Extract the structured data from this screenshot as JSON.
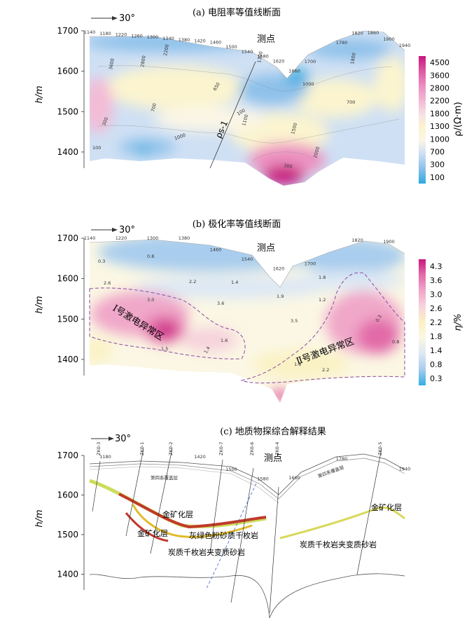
{
  "chart_data": [
    {
      "type": "heatmap",
      "panel": "a",
      "title": "(a) 电阻率等值线断面",
      "orientation": "30°",
      "ylabel": "h/m",
      "yticks": [
        "1700",
        "1600",
        "1500",
        "1400"
      ],
      "ylim": [
        1360,
        1700
      ],
      "station_label": "测点",
      "stations": [
        {
          "x": 1140,
          "label": "1140"
        },
        {
          "x": 1180,
          "label": "1180"
        },
        {
          "x": 1220,
          "label": "1220"
        },
        {
          "x": 1260,
          "label": "1260"
        },
        {
          "x": 1300,
          "label": "1300"
        },
        {
          "x": 1340,
          "label": "1340"
        },
        {
          "x": 1380,
          "label": "1380"
        },
        {
          "x": 1420,
          "label": "1420"
        },
        {
          "x": 1460,
          "label": "1460"
        },
        {
          "x": 1500,
          "label": "1500"
        },
        {
          "x": 1540,
          "label": "1540"
        },
        {
          "x": 1580,
          "label": "1580"
        },
        {
          "x": 1620,
          "label": "1620"
        },
        {
          "x": 1660,
          "label": "1660"
        },
        {
          "x": 1700,
          "label": "1700"
        },
        {
          "x": 1780,
          "label": "1780"
        },
        {
          "x": 1820,
          "label": "1820"
        },
        {
          "x": 1860,
          "label": "1860"
        },
        {
          "x": 1900,
          "label": "1900"
        },
        {
          "x": 1940,
          "label": "1940"
        }
      ],
      "fault_label": "ρs-1",
      "colorbar": {
        "label": "ρ/(Ω·m)",
        "levels": [
          "4500",
          "3600",
          "2800",
          "2200",
          "1800",
          "1300",
          "1000",
          "700",
          "300",
          "100"
        ],
        "colors": [
          "#c8177f",
          "#de5aa4",
          "#ec92c1",
          "#f3bcd6",
          "#f6e3e4",
          "#fbf4cf",
          "#fbf6e6",
          "#cfe0f4",
          "#8ec1ea",
          "#2aaae0"
        ]
      },
      "contour_labels": [
        "100",
        "300",
        "700",
        "1000",
        "1300",
        "1800",
        "2200",
        "2800",
        "3600",
        "650",
        "1100",
        "1500",
        "2000"
      ]
    },
    {
      "type": "heatmap",
      "panel": "b",
      "title": "(b) 极化率等值线断面",
      "orientation": "30°",
      "ylabel": "h/m",
      "yticks": [
        "1700",
        "1600",
        "1500",
        "1400"
      ],
      "ylim": [
        1360,
        1700
      ],
      "station_label": "测点",
      "stations": [
        {
          "x": 1140,
          "label": "1140"
        },
        {
          "x": 1220,
          "label": "1220"
        },
        {
          "x": 1300,
          "label": "1300"
        },
        {
          "x": 1380,
          "label": "1380"
        },
        {
          "x": 1460,
          "label": "1460"
        },
        {
          "x": 1540,
          "label": "1540"
        },
        {
          "x": 1620,
          "label": "1620"
        },
        {
          "x": 1700,
          "label": "1700"
        },
        {
          "x": 1820,
          "label": "1820"
        },
        {
          "x": 1900,
          "label": "1900"
        }
      ],
      "anomalies": [
        "Ⅰ号激电异常区",
        "Ⅱ号激电异常区"
      ],
      "colorbar": {
        "label": "η/%",
        "levels": [
          "4.3",
          "3.6",
          "3.0",
          "2.6",
          "2.2",
          "1.8",
          "1.4",
          "0.8",
          "0.3"
        ],
        "colors": [
          "#c8177f",
          "#e26aa8",
          "#f0a7c9",
          "#f6d3dd",
          "#faf2c4",
          "#fbf7e4",
          "#dde8f4",
          "#a9cdee",
          "#32b0e3"
        ]
      },
      "contour_labels": [
        "0.3",
        "0.8",
        "1.4",
        "1.8",
        "2.2",
        "2.6",
        "3.0",
        "3.6",
        "1.9",
        "1.2",
        "1.6",
        "1.5",
        "3.5"
      ]
    },
    {
      "type": "diagram",
      "panel": "c",
      "title": "(c) 地质物探综合解释结果",
      "orientation": "30°",
      "ylabel": "h/m",
      "yticks": [
        "1700",
        "1600",
        "1500",
        "1400"
      ],
      "ylim": [
        1360,
        1700
      ],
      "station_label": "测点",
      "stations": [
        {
          "x": 1180,
          "label": "1180"
        },
        {
          "x": 1420,
          "label": "1420"
        },
        {
          "x": 1500,
          "label": "1500"
        },
        {
          "x": 1580,
          "label": "1580"
        },
        {
          "x": 1660,
          "label": "1660"
        },
        {
          "x": 1780,
          "label": "1780"
        },
        {
          "x": 1940,
          "label": "1940"
        }
      ],
      "drillholes": [
        "ZK0-3",
        "ZK0-1",
        "ZK0-2",
        "ZK0-7",
        "ZK0-6",
        "ZK0-4",
        "ZK0-5"
      ],
      "layers": [
        "第四系覆盖层",
        "第四系覆盖层"
      ],
      "ore_labels": [
        "金矿化层",
        "金矿化层",
        "金矿化层"
      ],
      "rock_labels": [
        "灰绿色粉砂质千枚岩",
        "炭质千枚岩夹变质砂岩",
        "炭质千枚岩夹变质砂岩"
      ]
    }
  ]
}
